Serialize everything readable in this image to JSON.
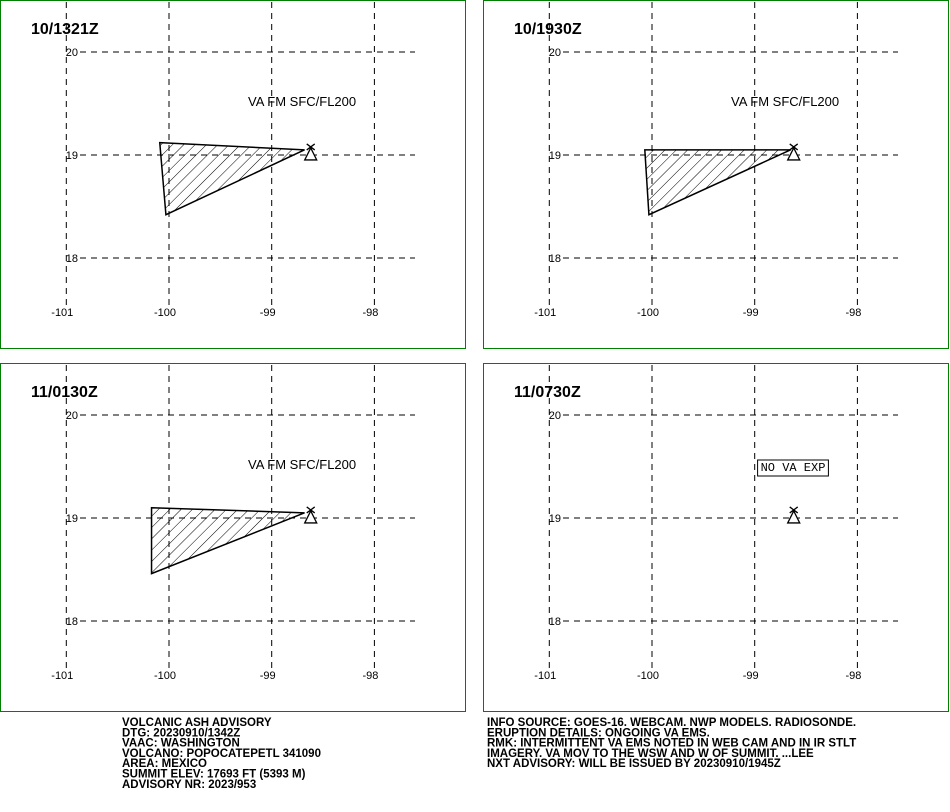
{
  "panels": [
    {
      "title": "10/1321Z",
      "label": "VA FM SFC/FL200",
      "polygon": [
        [
          -100.09,
          19.12
        ],
        [
          -98.68,
          19.05
        ],
        [
          -100.03,
          18.42
        ]
      ]
    },
    {
      "title": "10/1930Z",
      "label": "VA FM SFC/FL200",
      "polygon": [
        [
          -100.07,
          19.05
        ],
        [
          -98.65,
          19.05
        ],
        [
          -100.03,
          18.42
        ]
      ]
    },
    {
      "title": "11/0130Z",
      "label": "VA FM SFC/FL200",
      "polygon": [
        [
          -100.17,
          19.1
        ],
        [
          -98.68,
          19.05
        ],
        [
          -100.17,
          18.46
        ]
      ]
    },
    {
      "title": "11/0730Z",
      "label": "NO VA EXP"
    }
  ],
  "lon_ticks": [
    -101,
    -100,
    -99,
    -98
  ],
  "lat_ticks": [
    20,
    19,
    18
  ],
  "volcano": {
    "lon": -98.62,
    "lat": 19.02
  },
  "info_left": [
    "VOLCANIC ASH ADVISORY",
    "DTG: 20230910/1342Z",
    "VAAC: WASHINGTON",
    "VOLCANO: POPOCATEPETL 341090",
    "AREA: MEXICO",
    "SUMMIT ELEV: 17693 FT (5393 M)",
    "ADVISORY NR: 2023/953"
  ],
  "info_right": [
    "INFO SOURCE: GOES-16. WEBCAM. NWP MODELS. RADIOSONDE.",
    "ERUPTION DETAILS: ONGOING VA EMS.",
    "RMK: INTERMITTENT VA EMS NOTED IN WEB CAM AND IN IR STLT",
    "IMAGERY. VA MOV TO THE WSW AND W OF SUMMIT. ...LEE",
    "NXT ADVISORY: WILL BE ISSUED BY 20230910/1945Z"
  ]
}
